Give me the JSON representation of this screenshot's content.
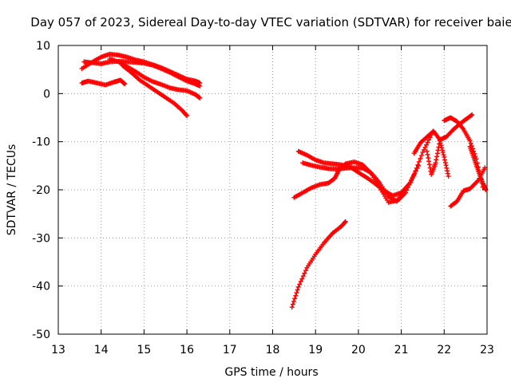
{
  "chart_data": {
    "type": "scatter",
    "title": "Day 057 of 2023, Sidereal Day-to-day VTEC variation (SDTVAR) for receiver baie",
    "xlabel": "GPS time / hours",
    "ylabel": "SDTVAR / TECUs",
    "xlim": [
      13,
      23
    ],
    "ylim": [
      -50,
      10
    ],
    "x_ticks": [
      "13",
      "14",
      "15",
      "16",
      "17",
      "18",
      "19",
      "20",
      "21",
      "22",
      "23"
    ],
    "y_ticks": [
      "10",
      "0",
      "-10",
      "-20",
      "-30",
      "-40",
      "-50"
    ],
    "grid": true,
    "marker": "plus",
    "color": "#ff0000",
    "series": [
      {
        "x": [
          13.55,
          13.8,
          14.0,
          14.2,
          14.4,
          14.6,
          14.8,
          15.0,
          15.2,
          15.4,
          15.6,
          15.8,
          16.0,
          16.2,
          16.3
        ],
        "y": [
          5.2,
          6.6,
          7.6,
          8.2,
          8.0,
          7.6,
          7.0,
          6.6,
          6.0,
          5.4,
          4.6,
          3.8,
          3.0,
          2.6,
          2.2
        ]
      },
      {
        "x": [
          13.6,
          13.8,
          14.0,
          14.2,
          14.4,
          14.6,
          14.8,
          15.0,
          15.2,
          15.4,
          15.6,
          15.8,
          16.0,
          16.2,
          16.3
        ],
        "y": [
          6.6,
          6.4,
          6.2,
          6.6,
          6.7,
          6.6,
          6.5,
          6.3,
          5.9,
          5.2,
          4.4,
          3.5,
          2.6,
          2.0,
          1.6
        ]
      },
      {
        "x": [
          14.2,
          14.4,
          14.6,
          14.8,
          15.0,
          15.2,
          15.4,
          15.6,
          15.8,
          16.0,
          16.2,
          16.3
        ],
        "y": [
          7.2,
          6.6,
          5.6,
          4.6,
          3.4,
          2.5,
          1.9,
          1.2,
          0.8,
          0.6,
          -0.2,
          -0.9
        ]
      },
      {
        "x": [
          13.55,
          13.7,
          13.9,
          14.1,
          14.3,
          14.45,
          14.55
        ],
        "y": [
          2.2,
          2.6,
          2.2,
          1.8,
          2.4,
          2.8,
          2.0
        ]
      },
      {
        "x": [
          14.5,
          14.7,
          14.9,
          15.1,
          15.3,
          15.5,
          15.7,
          15.9,
          16.0
        ],
        "y": [
          5.8,
          4.4,
          2.8,
          1.6,
          0.4,
          -0.8,
          -2.0,
          -3.6,
          -4.6
        ]
      },
      {
        "x": [
          18.6,
          18.8,
          19.0,
          19.2,
          19.4,
          19.6,
          19.8,
          20.0,
          20.2,
          20.4,
          20.6,
          20.8,
          21.0,
          21.2,
          21.4
        ],
        "y": [
          -12.0,
          -12.8,
          -13.8,
          -14.4,
          -14.6,
          -14.8,
          -15.2,
          -16.4,
          -17.5,
          -18.8,
          -20.2,
          -21.2,
          -20.6,
          -18.6,
          -15.0
        ]
      },
      {
        "x": [
          18.7,
          18.9,
          19.1,
          19.3,
          19.5,
          19.7,
          19.9,
          20.1,
          20.3,
          20.5,
          20.7,
          20.9,
          21.1,
          21.3,
          21.5,
          21.7
        ],
        "y": [
          -14.4,
          -14.9,
          -15.3,
          -15.6,
          -15.7,
          -15.5,
          -15.4,
          -15.5,
          -16.5,
          -18.6,
          -21.4,
          -22.4,
          -20.6,
          -16.8,
          -12.2,
          -8.6
        ]
      },
      {
        "x": [
          18.5,
          18.7,
          18.9,
          19.1,
          19.3,
          19.45,
          19.55,
          19.7,
          19.9,
          20.1,
          20.3,
          20.5,
          20.7,
          20.9,
          21.1
        ],
        "y": [
          -21.6,
          -20.6,
          -19.6,
          -18.9,
          -18.6,
          -17.6,
          -15.8,
          -14.6,
          -14.2,
          -14.8,
          -16.6,
          -19.6,
          -22.6,
          -22.2,
          -19.8
        ]
      },
      {
        "x": [
          21.3,
          21.45,
          21.6,
          21.75,
          21.9,
          22.05,
          22.2,
          22.35,
          22.5,
          22.65
        ],
        "y": [
          -12.4,
          -10.2,
          -9.0,
          -7.8,
          -9.6,
          -9.0,
          -7.6,
          -6.4,
          -5.4,
          -4.4
        ]
      },
      {
        "x": [
          21.6,
          21.7,
          21.8,
          21.9,
          22.0,
          22.1
        ],
        "y": [
          -12.0,
          -16.8,
          -14.4,
          -9.8,
          -13.2,
          -17.2
        ]
      },
      {
        "x": [
          22.0,
          22.15,
          22.3,
          22.45,
          22.6,
          22.75,
          22.9
        ],
        "y": [
          -5.6,
          -5.0,
          -5.8,
          -7.4,
          -9.8,
          -13.6,
          -19.4
        ]
      },
      {
        "x": [
          22.15,
          22.3,
          22.45,
          22.6,
          22.8,
          22.95
        ],
        "y": [
          -23.4,
          -22.4,
          -20.2,
          -19.8,
          -18.0,
          -15.4
        ]
      },
      {
        "x": [
          22.6,
          22.7,
          22.8,
          22.9,
          22.97
        ],
        "y": [
          -11.0,
          -13.6,
          -16.2,
          -18.6,
          -20.0
        ]
      },
      {
        "x": [
          18.45,
          18.6,
          18.8,
          19.0,
          19.2,
          19.4,
          19.6,
          19.7
        ],
        "y": [
          -44.4,
          -40.2,
          -36.2,
          -33.4,
          -31.0,
          -29.0,
          -27.6,
          -26.6
        ]
      }
    ]
  }
}
